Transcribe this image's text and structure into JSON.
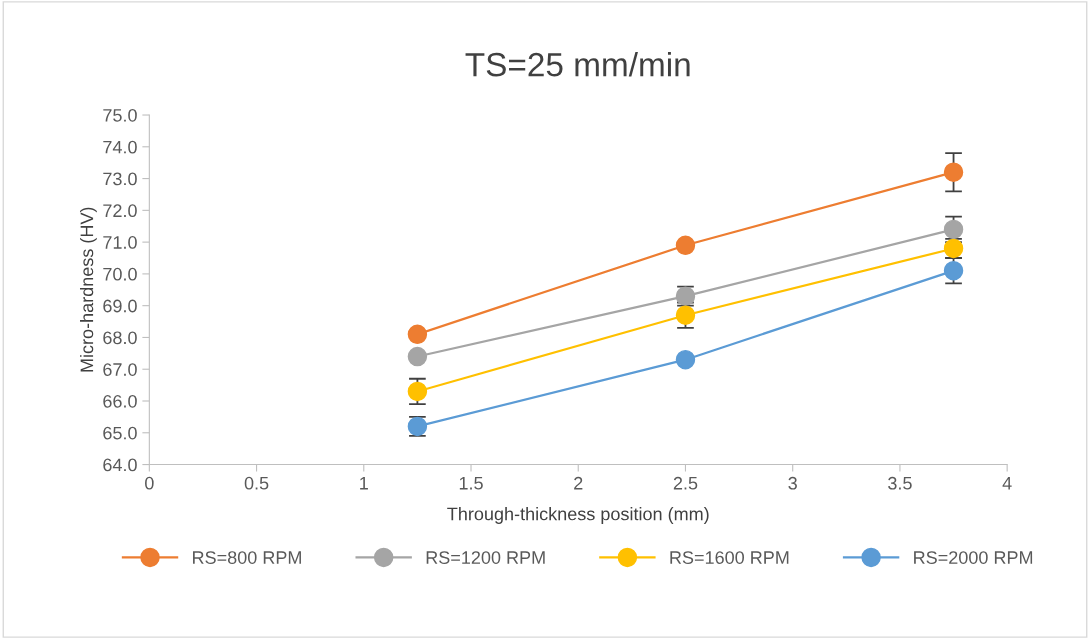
{
  "chart_data": {
    "type": "line",
    "title": "TS=25 mm/min",
    "xlabel": "Through-thickness position (mm)",
    "ylabel": "Micro-hardness (HV)",
    "x": [
      1.25,
      2.5,
      3.75
    ],
    "series": [
      {
        "name": "RS=800 RPM",
        "color": "#ed7d31",
        "values": [
          68.1,
          70.9,
          73.2
        ],
        "errors": [
          null,
          null,
          0.6
        ]
      },
      {
        "name": "RS=1200 RPM",
        "color": "#a5a5a5",
        "values": [
          67.4,
          69.3,
          71.4
        ],
        "errors": [
          null,
          0.3,
          0.4
        ]
      },
      {
        "name": "RS=1600 RPM",
        "color": "#ffc000",
        "values": [
          66.3,
          68.7,
          70.8
        ],
        "errors": [
          0.4,
          0.4,
          0.3
        ]
      },
      {
        "name": "RS=2000 RPM",
        "color": "#5b9bd5",
        "values": [
          65.2,
          67.3,
          70.1
        ],
        "errors": [
          0.3,
          null,
          0.4
        ]
      }
    ],
    "xlim": [
      0,
      4
    ],
    "xticks": [
      0,
      0.5,
      1,
      1.5,
      2,
      2.5,
      3,
      3.5,
      4
    ],
    "ylim": [
      64,
      75
    ],
    "yticks": [
      {
        "value": 64,
        "label": "64.0"
      },
      {
        "value": 65,
        "label": "65.0"
      },
      {
        "value": 66,
        "label": "66.0"
      },
      {
        "value": 67,
        "label": "67.0"
      },
      {
        "value": 68,
        "label": "68.0"
      },
      {
        "value": 69,
        "label": "69.0"
      },
      {
        "value": 70,
        "label": "70.0"
      },
      {
        "value": 71,
        "label": "71.0"
      },
      {
        "value": 72,
        "label": "72.0"
      },
      {
        "value": 73,
        "label": "73.0"
      },
      {
        "value": 74,
        "label": "74.0"
      },
      {
        "value": 75,
        "label": "75.0"
      }
    ],
    "grid": false,
    "legend": "bottom",
    "marker": "circle",
    "line_style": "solid"
  }
}
